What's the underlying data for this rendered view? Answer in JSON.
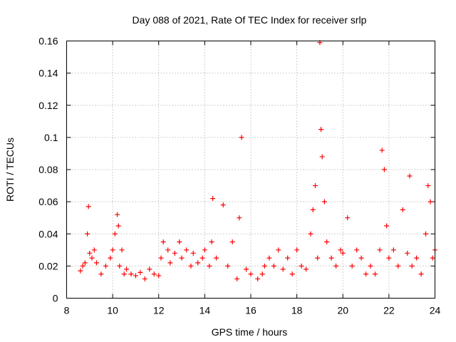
{
  "chart_data": {
    "type": "scatter",
    "title": "Day 088 of 2021, Rate Of TEC Index for receiver srlp",
    "xlabel": "GPS time / hours",
    "ylabel": "ROTI / TECUs",
    "xlim": [
      8,
      24
    ],
    "ylim": [
      0,
      0.16
    ],
    "xticks": [
      8,
      10,
      12,
      14,
      16,
      18,
      20,
      22,
      24
    ],
    "xtick_labels": [
      "8",
      "10",
      "12",
      "14",
      "16",
      "18",
      "20",
      "22",
      "24"
    ],
    "yticks": [
      0,
      0.02,
      0.04,
      0.06,
      0.08,
      0.1,
      0.12,
      0.14,
      0.16
    ],
    "ytick_labels": [
      "0",
      "0.02",
      "0.04",
      "0.06",
      "0.08",
      "0.1",
      "0.12",
      "0.14",
      "0.16"
    ],
    "grid": true,
    "marker": "+",
    "color": "#ff0000",
    "series": [
      {
        "name": "ROTI",
        "x": [
          8.6,
          8.7,
          8.8,
          8.9,
          8.95,
          9.0,
          9.1,
          9.2,
          9.3,
          9.5,
          9.7,
          9.9,
          10.0,
          10.1,
          10.2,
          10.25,
          10.3,
          10.4,
          10.5,
          10.6,
          10.8,
          11.0,
          11.2,
          11.4,
          11.6,
          11.8,
          12.0,
          12.1,
          12.2,
          12.4,
          12.5,
          12.7,
          12.9,
          13.0,
          13.2,
          13.4,
          13.5,
          13.7,
          13.9,
          14.0,
          14.2,
          14.3,
          14.35,
          14.5,
          14.8,
          15.0,
          15.2,
          15.4,
          15.5,
          15.6,
          15.8,
          16.0,
          16.3,
          16.5,
          16.6,
          16.8,
          17.0,
          17.2,
          17.4,
          17.6,
          17.8,
          18.0,
          18.2,
          18.4,
          18.6,
          18.7,
          18.8,
          18.9,
          19.0,
          19.05,
          19.1,
          19.2,
          19.3,
          19.5,
          19.7,
          19.9,
          20.0,
          20.2,
          20.4,
          20.6,
          20.8,
          21.0,
          21.2,
          21.4,
          21.6,
          21.7,
          21.8,
          21.9,
          22.0,
          22.2,
          22.4,
          22.6,
          22.8,
          22.9,
          23.0,
          23.2,
          23.4,
          23.6,
          23.7,
          23.8,
          23.9,
          24.0
        ],
        "y": [
          0.017,
          0.02,
          0.022,
          0.04,
          0.057,
          0.028,
          0.025,
          0.03,
          0.022,
          0.015,
          0.02,
          0.025,
          0.03,
          0.04,
          0.052,
          0.045,
          0.02,
          0.03,
          0.015,
          0.018,
          0.015,
          0.014,
          0.016,
          0.012,
          0.018,
          0.015,
          0.014,
          0.025,
          0.035,
          0.03,
          0.022,
          0.028,
          0.035,
          0.025,
          0.03,
          0.02,
          0.028,
          0.022,
          0.025,
          0.03,
          0.02,
          0.035,
          0.062,
          0.025,
          0.058,
          0.02,
          0.035,
          0.012,
          0.05,
          0.1,
          0.018,
          0.015,
          0.012,
          0.015,
          0.02,
          0.025,
          0.02,
          0.03,
          0.018,
          0.025,
          0.015,
          0.03,
          0.02,
          0.018,
          0.04,
          0.055,
          0.07,
          0.025,
          0.159,
          0.105,
          0.088,
          0.06,
          0.035,
          0.025,
          0.02,
          0.03,
          0.028,
          0.05,
          0.02,
          0.03,
          0.025,
          0.015,
          0.02,
          0.015,
          0.03,
          0.092,
          0.08,
          0.045,
          0.025,
          0.03,
          0.02,
          0.055,
          0.028,
          0.076,
          0.02,
          0.025,
          0.015,
          0.04,
          0.07,
          0.06,
          0.025,
          0.03
        ]
      }
    ]
  }
}
